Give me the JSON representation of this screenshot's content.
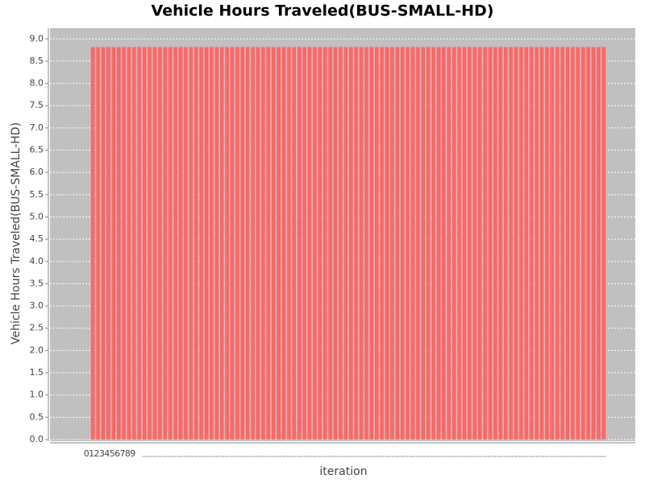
{
  "chart_data": {
    "type": "bar",
    "title": "Vehicle Hours Traveled(BUS-SMALL-HD)",
    "x_label": "iteration",
    "y_label": "Vehicle Hours Traveled(BUS-SMALL-HD)",
    "categories": [
      "0",
      "1",
      "2",
      "3",
      "4",
      "5",
      "6",
      "7",
      "8",
      "9",
      null,
      null,
      null,
      null,
      null,
      null,
      null,
      null,
      null,
      null,
      null,
      null,
      null,
      null,
      null,
      null,
      null,
      null,
      null,
      null,
      null,
      null,
      null,
      null,
      null,
      null,
      null,
      null,
      null,
      null,
      null,
      null,
      null,
      null,
      null,
      null,
      null,
      null,
      null,
      null,
      null,
      null,
      null,
      null,
      null,
      null,
      null,
      null,
      null,
      null,
      null,
      null,
      null,
      null,
      null,
      null,
      null,
      null,
      null,
      null,
      null,
      null,
      null,
      null,
      null,
      null,
      null,
      null,
      null,
      null,
      null,
      null,
      null,
      null,
      null,
      null,
      null,
      null,
      null,
      null,
      null,
      null,
      null,
      null,
      null,
      null,
      null,
      null,
      null,
      null
    ],
    "values": [
      8.82,
      8.82,
      8.82,
      8.82,
      8.82,
      8.82,
      8.82,
      8.82,
      8.82,
      8.82,
      8.82,
      8.82,
      8.82,
      8.82,
      8.82,
      8.82,
      8.82,
      8.82,
      8.82,
      8.82,
      8.82,
      8.82,
      8.82,
      8.82,
      8.82,
      8.82,
      8.82,
      8.82,
      8.82,
      8.82,
      8.82,
      8.82,
      8.82,
      8.82,
      8.82,
      8.82,
      8.82,
      8.82,
      8.82,
      8.82,
      8.82,
      8.82,
      8.82,
      8.82,
      8.82,
      8.82,
      8.82,
      8.82,
      8.82,
      8.82,
      8.82,
      8.82,
      8.82,
      8.82,
      8.82,
      8.82,
      8.82,
      8.82,
      8.82,
      8.82,
      8.82,
      8.82,
      8.82,
      8.82,
      8.82,
      8.82,
      8.82,
      8.82,
      8.82,
      8.82,
      8.82,
      8.82,
      8.82,
      8.82,
      8.82,
      8.82,
      8.82,
      8.82,
      8.82,
      8.82,
      8.82,
      8.82,
      8.82,
      8.82,
      8.82,
      8.82,
      8.82,
      8.82,
      8.82,
      8.82,
      8.82,
      8.82,
      8.82,
      8.82,
      8.82,
      8.82,
      8.82,
      8.82,
      8.82,
      8.82
    ],
    "color": "#f46a6a",
    "ylim": [
      0,
      9.24
    ],
    "yticks": [
      {
        "value": 0,
        "label": "0.0"
      },
      {
        "value": 0.5,
        "label": "0.5"
      },
      {
        "value": 1,
        "label": "1.0"
      },
      {
        "value": 1.5,
        "label": "1.5"
      },
      {
        "value": 2,
        "label": "2.0"
      },
      {
        "value": 2.5,
        "label": "2.5"
      },
      {
        "value": 3,
        "label": "3.0"
      },
      {
        "value": 3.5,
        "label": "3.5"
      },
      {
        "value": 4,
        "label": "4.0"
      },
      {
        "value": 4.5,
        "label": "4.5"
      },
      {
        "value": 5,
        "label": "5.0"
      },
      {
        "value": 5.5,
        "label": "5.5"
      },
      {
        "value": 6,
        "label": "6.0"
      },
      {
        "value": 6.5,
        "label": "6.5"
      },
      {
        "value": 7,
        "label": "7.0"
      },
      {
        "value": 7.5,
        "label": "7.5"
      },
      {
        "value": 8,
        "label": "8.0"
      },
      {
        "value": 8.5,
        "label": "8.5"
      },
      {
        "value": 9,
        "label": "9.0"
      }
    ],
    "grid": true
  }
}
